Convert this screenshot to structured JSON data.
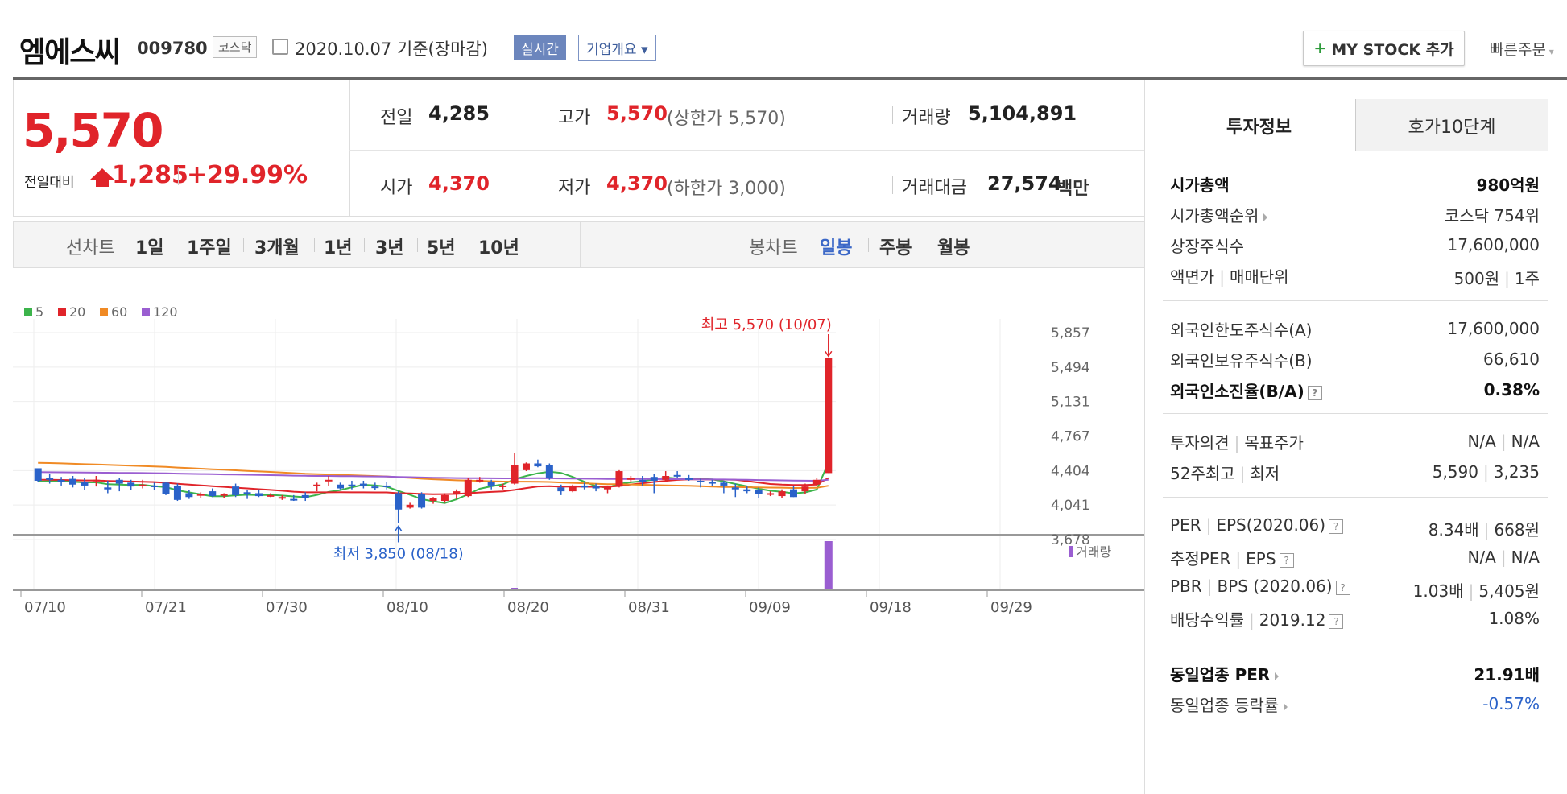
{
  "header": {
    "name": "엠에스씨",
    "code": "009780",
    "market": "코스닥",
    "date": "2020.10.07 기준(장마감)",
    "realtime_btn": "실시간",
    "overview_btn": "기업개요",
    "mystock_btn": "MY STOCK 추가",
    "quick_order": "빠른주문"
  },
  "price": {
    "current": "5,570",
    "change_label": "전일대비",
    "change": "1,285",
    "change_pct": "+29.99%",
    "prev_label": "전일",
    "prev": "4,285",
    "high_label": "고가",
    "high": "5,570",
    "upper_limit": "(상한가 5,570)",
    "volume_label": "거래량",
    "volume": "5,104,891",
    "open_label": "시가",
    "open": "4,370",
    "low_label": "저가",
    "low": "4,370",
    "lower_limit": "(하한가 3,000)",
    "amount_label": "거래대금",
    "amount": "27,574",
    "amount_unit": "백만"
  },
  "periods": {
    "line_label": "선차트",
    "line": [
      "1일",
      "1주일",
      "3개월",
      "1년",
      "3년",
      "5년",
      "10년"
    ],
    "candle_label": "봉차트",
    "candle": [
      "일봉",
      "주봉",
      "월봉"
    ],
    "active_candle": "일봉"
  },
  "chart_data": {
    "type": "candlestick",
    "legend": [
      "5",
      "20",
      "60",
      "120"
    ],
    "legend_colors": [
      "#3cb44b",
      "#e0242a",
      "#f08a24",
      "#9a5ed1"
    ],
    "y_ticks": [
      "5,857",
      "5,494",
      "5,131",
      "4,767",
      "4,404",
      "4,041",
      "3,678"
    ],
    "ylim": [
      3678,
      5857
    ],
    "x_ticks": [
      "07/10",
      "07/21",
      "07/30",
      "08/10",
      "08/20",
      "08/31",
      "09/09",
      "09/18",
      "09/29"
    ],
    "high_annotation": "최고 5,570 (10/07)",
    "low_annotation": "최저 3,850 (08/18)",
    "volume_label": "거래량",
    "candles": [
      [
        4420,
        4400,
        4280,
        4290
      ],
      [
        4320,
        4360,
        4260,
        4300
      ],
      [
        4300,
        4330,
        4240,
        4280
      ],
      [
        4310,
        4340,
        4220,
        4250
      ],
      [
        4280,
        4320,
        4190,
        4240
      ],
      [
        4300,
        4340,
        4230,
        4300
      ],
      [
        4220,
        4290,
        4160,
        4200
      ],
      [
        4300,
        4320,
        4180,
        4260
      ],
      [
        4270,
        4300,
        4190,
        4230
      ],
      [
        4250,
        4300,
        4210,
        4250
      ],
      [
        4240,
        4270,
        4190,
        4230
      ],
      [
        4270,
        4280,
        4140,
        4150
      ],
      [
        4240,
        4260,
        4080,
        4090
      ],
      [
        4160,
        4190,
        4100,
        4120
      ],
      [
        4140,
        4170,
        4110,
        4150
      ],
      [
        4180,
        4210,
        4120,
        4130
      ],
      [
        4140,
        4160,
        4110,
        4150
      ],
      [
        4230,
        4260,
        4120,
        4140
      ],
      [
        4170,
        4190,
        4100,
        4150
      ],
      [
        4160,
        4200,
        4120,
        4130
      ],
      [
        4140,
        4160,
        4120,
        4140
      ],
      [
        4110,
        4140,
        4090,
        4120
      ],
      [
        4100,
        4140,
        4080,
        4090
      ],
      [
        4140,
        4170,
        4080,
        4110
      ],
      [
        4240,
        4270,
        4180,
        4250
      ],
      [
        4300,
        4340,
        4240,
        4300
      ],
      [
        4250,
        4270,
        4200,
        4210
      ],
      [
        4250,
        4290,
        4200,
        4240
      ],
      [
        4260,
        4290,
        4210,
        4240
      ],
      [
        4230,
        4270,
        4190,
        4220
      ],
      [
        4240,
        4280,
        4200,
        4230
      ],
      [
        4160,
        4180,
        3850,
        3990
      ],
      [
        4010,
        4060,
        4000,
        4040
      ],
      [
        4150,
        4170,
        4000,
        4010
      ],
      [
        4080,
        4120,
        4050,
        4110
      ],
      [
        4080,
        4160,
        4060,
        4140
      ],
      [
        4150,
        4200,
        4100,
        4180
      ],
      [
        4130,
        4320,
        4120,
        4300
      ],
      [
        4300,
        4330,
        4270,
        4300
      ],
      [
        4280,
        4300,
        4200,
        4240
      ],
      [
        4230,
        4260,
        4200,
        4240
      ],
      [
        4260,
        4580,
        4250,
        4450
      ],
      [
        4400,
        4480,
        4390,
        4470
      ],
      [
        4470,
        4510,
        4430,
        4440
      ],
      [
        4450,
        4470,
        4300,
        4320
      ],
      [
        4220,
        4250,
        4140,
        4180
      ],
      [
        4180,
        4250,
        4170,
        4240
      ],
      [
        4240,
        4270,
        4200,
        4220
      ],
      [
        4230,
        4260,
        4180,
        4210
      ],
      [
        4200,
        4240,
        4160,
        4230
      ],
      [
        4230,
        4400,
        4220,
        4390
      ],
      [
        4300,
        4340,
        4280,
        4320
      ],
      [
        4300,
        4340,
        4240,
        4280
      ],
      [
        4330,
        4360,
        4160,
        4290
      ],
      [
        4300,
        4390,
        4280,
        4340
      ],
      [
        4350,
        4390,
        4320,
        4340
      ],
      [
        4320,
        4350,
        4290,
        4300
      ],
      [
        4290,
        4310,
        4220,
        4280
      ],
      [
        4280,
        4300,
        4240,
        4260
      ],
      [
        4270,
        4290,
        4160,
        4240
      ],
      [
        4220,
        4260,
        4120,
        4200
      ],
      [
        4200,
        4230,
        4160,
        4180
      ],
      [
        4190,
        4220,
        4110,
        4150
      ],
      [
        4150,
        4180,
        4130,
        4160
      ],
      [
        4130,
        4200,
        4110,
        4180
      ],
      [
        4200,
        4240,
        4120,
        4120
      ],
      [
        4180,
        4260,
        4150,
        4230
      ],
      [
        4250,
        4320,
        4240,
        4300
      ],
      [
        4370,
        5570,
        4370,
        5570
      ]
    ]
  },
  "side": {
    "tab1": "투자정보",
    "tab2": "호가10단계",
    "rows": [
      {
        "label": "시가총액",
        "value": "980억원"
      },
      {
        "label": "시가총액순위",
        "value": "코스닥 754위"
      },
      {
        "label": "상장주식수",
        "value": "17,600,000"
      },
      {
        "label": "액면가",
        "label2": "매매단위",
        "value": "500원",
        "value2": "1주"
      },
      {
        "label": "외국인한도주식수(A)",
        "value": "17,600,000"
      },
      {
        "label": "외국인보유주식수(B)",
        "value": "66,610"
      },
      {
        "label": "외국인소진율(B/A)",
        "value": "0.38%"
      },
      {
        "label": "투자의견",
        "label2": "목표주가",
        "value": "N/A",
        "value2": "N/A"
      },
      {
        "label": "52주최고",
        "label2": "최저",
        "value": "5,590",
        "value2": "3,235"
      },
      {
        "label": "PER",
        "label2": "EPS(2020.06)",
        "value": "8.34배",
        "value2": "668원"
      },
      {
        "label": "추정PER",
        "label2": "EPS",
        "value": "N/A",
        "value2": "N/A"
      },
      {
        "label": "PBR",
        "label2": "BPS (2020.06)",
        "value": "1.03배",
        "value2": "5,405원"
      },
      {
        "label": "배당수익률",
        "label2": "2019.12",
        "value": "1.08%"
      },
      {
        "label": "동일업종 PER",
        "value": "21.91배"
      },
      {
        "label": "동일업종 등락률",
        "value": "-0.57%"
      }
    ],
    "help_glyph": "?"
  }
}
